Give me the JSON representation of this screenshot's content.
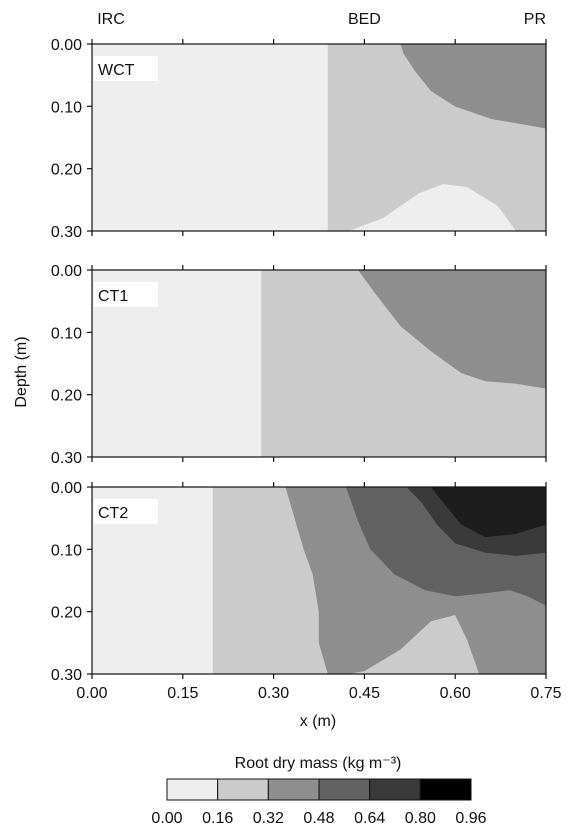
{
  "chart_data": {
    "type": "heatmap",
    "subtype": "filled-contour",
    "top_labels": [
      "IRC",
      "BED",
      "PR"
    ],
    "ylabel": "Depth (m)",
    "xlabel": "x (m)",
    "xlim": [
      0.0,
      0.75
    ],
    "ylim": [
      0.0,
      0.3
    ],
    "x_ticks": [
      "0.00",
      "0.15",
      "0.30",
      "0.45",
      "0.60",
      "0.75"
    ],
    "y_ticks": [
      "0.00",
      "0.10",
      "0.20",
      "0.30"
    ],
    "colorbar": {
      "title": "Root dry mass (kg m⁻³)",
      "levels": [
        "0.00",
        "0.16",
        "0.32",
        "0.48",
        "0.64",
        "0.80",
        "0.96"
      ],
      "colors": [
        "#eeeeee",
        "#cbcbcb",
        "#8e8e8e",
        "#626262",
        "#3a3a3a",
        "#1d1d1d",
        "#000000"
      ]
    },
    "panels": [
      {
        "name": "WCT",
        "regions": [
          {
            "level": 0,
            "points": [
              [
                0,
                0
              ],
              [
                0.39,
                0
              ],
              [
                0.39,
                0.3
              ],
              [
                0,
                0.3
              ]
            ]
          },
          {
            "level": 1,
            "points": [
              [
                0.39,
                0
              ],
              [
                0.75,
                0
              ],
              [
                0.75,
                0.3
              ],
              [
                0.39,
                0.3
              ]
            ]
          },
          {
            "level": 0,
            "points": [
              [
                0.425,
                0.3
              ],
              [
                0.48,
                0.28
              ],
              [
                0.54,
                0.24
              ],
              [
                0.58,
                0.225
              ],
              [
                0.62,
                0.23
              ],
              [
                0.67,
                0.26
              ],
              [
                0.7,
                0.3
              ]
            ]
          },
          {
            "level": 2,
            "points": [
              [
                0.51,
                0.0
              ],
              [
                0.75,
                0.0
              ],
              [
                0.75,
                0.135
              ],
              [
                0.72,
                0.13
              ],
              [
                0.66,
                0.12
              ],
              [
                0.6,
                0.1
              ],
              [
                0.56,
                0.075
              ],
              [
                0.535,
                0.045
              ],
              [
                0.515,
                0.015
              ]
            ]
          }
        ]
      },
      {
        "name": "CT1",
        "regions": [
          {
            "level": 0,
            "points": [
              [
                0,
                0
              ],
              [
                0.28,
                0
              ],
              [
                0.28,
                0.3
              ],
              [
                0,
                0.3
              ]
            ]
          },
          {
            "level": 1,
            "points": [
              [
                0.28,
                0
              ],
              [
                0.75,
                0
              ],
              [
                0.75,
                0.3
              ],
              [
                0.28,
                0.3
              ]
            ]
          },
          {
            "level": 2,
            "points": [
              [
                0.44,
                0.0
              ],
              [
                0.75,
                0.0
              ],
              [
                0.75,
                0.19
              ],
              [
                0.7,
                0.182
              ],
              [
                0.65,
                0.178
              ],
              [
                0.61,
                0.165
              ],
              [
                0.56,
                0.13
              ],
              [
                0.51,
                0.09
              ],
              [
                0.47,
                0.04
              ]
            ]
          }
        ]
      },
      {
        "name": "CT2",
        "regions": [
          {
            "level": 0,
            "points": [
              [
                0,
                0
              ],
              [
                0.2,
                0
              ],
              [
                0.2,
                0.3
              ],
              [
                0,
                0.3
              ]
            ]
          },
          {
            "level": 1,
            "points": [
              [
                0.2,
                0
              ],
              [
                0.75,
                0
              ],
              [
                0.75,
                0.3
              ],
              [
                0.2,
                0.3
              ]
            ]
          },
          {
            "level": 2,
            "points": [
              [
                0.32,
                0.0
              ],
              [
                0.75,
                0.0
              ],
              [
                0.75,
                0.3
              ],
              [
                0.64,
                0.3
              ],
              [
                0.62,
                0.245
              ],
              [
                0.6,
                0.205
              ],
              [
                0.56,
                0.215
              ],
              [
                0.51,
                0.26
              ],
              [
                0.45,
                0.295
              ],
              [
                0.42,
                0.3
              ],
              [
                0.39,
                0.3
              ],
              [
                0.375,
                0.25
              ],
              [
                0.375,
                0.2
              ],
              [
                0.365,
                0.14
              ],
              [
                0.35,
                0.1
              ],
              [
                0.335,
                0.05
              ]
            ]
          },
          {
            "level": 3,
            "points": [
              [
                0.42,
                0.0
              ],
              [
                0.75,
                0.0
              ],
              [
                0.75,
                0.19
              ],
              [
                0.72,
                0.175
              ],
              [
                0.69,
                0.165
              ],
              [
                0.65,
                0.17
              ],
              [
                0.6,
                0.175
              ],
              [
                0.55,
                0.165
              ],
              [
                0.5,
                0.14
              ],
              [
                0.46,
                0.1
              ],
              [
                0.44,
                0.055
              ]
            ]
          },
          {
            "level": 4,
            "points": [
              [
                0.52,
                0.0
              ],
              [
                0.75,
                0.0
              ],
              [
                0.75,
                0.105
              ],
              [
                0.7,
                0.11
              ],
              [
                0.65,
                0.105
              ],
              [
                0.6,
                0.09
              ],
              [
                0.57,
                0.06
              ],
              [
                0.545,
                0.025
              ]
            ]
          },
          {
            "level": 5,
            "points": [
              [
                0.56,
                0.0
              ],
              [
                0.75,
                0.0
              ],
              [
                0.75,
                0.06
              ],
              [
                0.7,
                0.075
              ],
              [
                0.65,
                0.08
              ],
              [
                0.61,
                0.06
              ],
              [
                0.585,
                0.03
              ]
            ]
          }
        ]
      }
    ]
  }
}
